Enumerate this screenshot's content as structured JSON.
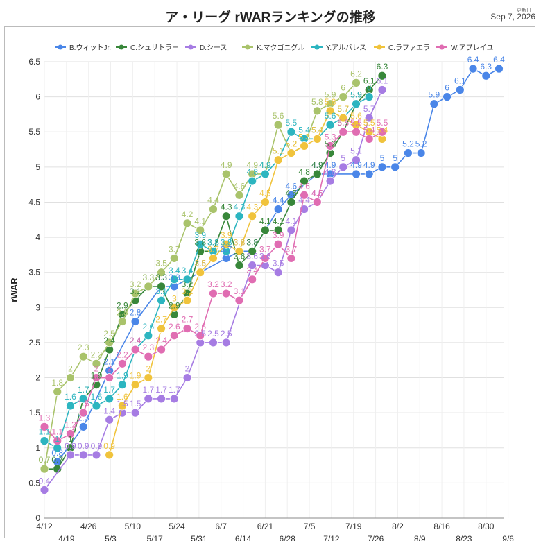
{
  "header": {
    "title": "ア・リーグ rWARランキングの推移",
    "updated_label": "更新日",
    "updated_date": "Sep 7, 2026"
  },
  "chart_data": {
    "type": "line",
    "title": "ア・リーグ rWARランキングの推移",
    "xlabel": "",
    "ylabel": "rWAR",
    "ylim": [
      0,
      6.5
    ],
    "yticks": [
      0,
      0.5,
      1,
      1.5,
      2,
      2.5,
      3,
      3.5,
      4,
      4.5,
      5,
      5.5,
      6,
      6.5
    ],
    "grid": true,
    "legend_position": "top",
    "x": [
      "4/12",
      "4/19",
      "4/26",
      "5/3",
      "5/10",
      "5/17",
      "5/24",
      "5/31",
      "6/7",
      "6/14",
      "6/21",
      "6/28",
      "7/5",
      "7/12",
      "7/19",
      "7/26",
      "8/2",
      "8/9",
      "8/16",
      "8/23",
      "8/30",
      "9/6"
    ],
    "series": [
      {
        "name": "B.ウィットJr.",
        "color": "#4a86e8",
        "points": [
          [
            0.5,
            0.8
          ],
          [
            1.5,
            1.3
          ],
          [
            2.5,
            2.1
          ],
          [
            3.5,
            2.8
          ],
          [
            4.5,
            3.3
          ],
          [
            5,
            3.3
          ],
          [
            6,
            3.5
          ],
          [
            7,
            3.7
          ],
          [
            7.5,
            3.8
          ],
          [
            8,
            3.8
          ],
          [
            9,
            4.4
          ],
          [
            9.5,
            4.6
          ],
          [
            10.5,
            4.9
          ],
          [
            11,
            4.9
          ],
          [
            12,
            4.9
          ],
          [
            12.5,
            4.9
          ],
          [
            13,
            5
          ],
          [
            13.5,
            5
          ],
          [
            14,
            5.2
          ],
          [
            14.5,
            5.2
          ],
          [
            15,
            5.9
          ],
          [
            15.5,
            6
          ],
          [
            16,
            6.1
          ],
          [
            16.5,
            6.4
          ],
          [
            17,
            6.3
          ],
          [
            17.5,
            6.4
          ]
        ]
      },
      {
        "name": "C.シュリトラー",
        "color": "#38873a",
        "points": [
          [
            0,
            0.7
          ],
          [
            0.5,
            0.7
          ],
          [
            1,
            1
          ],
          [
            1.5,
            1.7
          ],
          [
            2,
            1.9
          ],
          [
            2.5,
            2.4
          ],
          [
            3,
            2.9
          ],
          [
            3.5,
            3.1
          ],
          [
            4,
            3.3
          ],
          [
            4.5,
            3.3
          ],
          [
            5,
            2.9
          ],
          [
            5.5,
            3.2
          ],
          [
            6,
            3.8
          ],
          [
            6.5,
            3.8
          ],
          [
            7,
            4.3
          ],
          [
            7.5,
            3.6
          ],
          [
            8,
            3.8
          ],
          [
            8.5,
            4.1
          ],
          [
            9,
            4.1
          ],
          [
            9.5,
            4.5
          ],
          [
            10,
            4.8
          ],
          [
            10.5,
            4.9
          ],
          [
            11,
            5.2
          ],
          [
            11.5,
            5.5
          ],
          [
            12,
            5.9
          ],
          [
            12.5,
            6.1
          ],
          [
            13,
            6.3
          ]
        ]
      },
      {
        "name": "D.シース",
        "color": "#a67ce3",
        "points": [
          [
            0,
            0.4
          ],
          [
            1,
            0.9
          ],
          [
            1.5,
            0.9
          ],
          [
            2,
            0.9
          ],
          [
            2.5,
            1.4
          ],
          [
            3,
            1.5
          ],
          [
            3.5,
            1.5
          ],
          [
            4,
            1.7
          ],
          [
            4.5,
            1.7
          ],
          [
            5,
            1.7
          ],
          [
            5.5,
            2
          ],
          [
            6,
            2.5
          ],
          [
            6.5,
            2.5
          ],
          [
            7,
            2.5
          ],
          [
            8,
            3.6
          ],
          [
            8.5,
            3.6
          ],
          [
            9,
            3.5
          ],
          [
            9.5,
            4.1
          ],
          [
            10,
            4.4
          ],
          [
            10.5,
            4.5
          ],
          [
            11,
            4.8
          ],
          [
            11.5,
            5
          ],
          [
            12,
            5.1
          ],
          [
            12.5,
            5.7
          ],
          [
            13,
            6.1
          ]
        ]
      },
      {
        "name": "K.マクゴニグル",
        "color": "#a9c36b",
        "points": [
          [
            0,
            0.7
          ],
          [
            0.5,
            1.8
          ],
          [
            1,
            2
          ],
          [
            1.5,
            2.3
          ],
          [
            2,
            2.2
          ],
          [
            2.5,
            2.5
          ],
          [
            3,
            2.8
          ],
          [
            3.5,
            3.2
          ],
          [
            4,
            3.3
          ],
          [
            4.5,
            3.5
          ],
          [
            5,
            3.7
          ],
          [
            5.5,
            4.2
          ],
          [
            6,
            4.1
          ],
          [
            6.5,
            4.4
          ],
          [
            7,
            4.9
          ],
          [
            7.5,
            4.6
          ],
          [
            8,
            4.9
          ],
          [
            8.5,
            4.9
          ],
          [
            9,
            5.6
          ],
          [
            9.5,
            5.2
          ],
          [
            10,
            5.3
          ],
          [
            10.5,
            5.8
          ],
          [
            11,
            5.9
          ],
          [
            11.5,
            6
          ],
          [
            12,
            6.2
          ]
        ]
      },
      {
        "name": "Y.アルバレス",
        "color": "#2cb5c0",
        "points": [
          [
            0,
            1.1
          ],
          [
            0.5,
            1
          ],
          [
            1,
            1.6
          ],
          [
            1.5,
            1.7
          ],
          [
            2,
            1.6
          ],
          [
            2.5,
            1.7
          ],
          [
            3,
            1.9
          ],
          [
            3.5,
            2.4
          ],
          [
            4,
            2.6
          ],
          [
            4.5,
            3.1
          ],
          [
            5,
            3.4
          ],
          [
            5.5,
            3.4
          ],
          [
            6,
            3.9
          ],
          [
            6.5,
            3.8
          ],
          [
            7,
            3.8
          ],
          [
            7.5,
            4.3
          ],
          [
            8,
            4.8
          ],
          [
            8.5,
            4.9
          ],
          [
            9,
            5.1
          ],
          [
            9.5,
            5.5
          ],
          [
            10,
            5.4
          ],
          [
            10.5,
            5.4
          ],
          [
            11,
            5.6
          ],
          [
            11.5,
            5.7
          ],
          [
            12,
            5.9
          ],
          [
            12.5,
            6
          ]
        ]
      },
      {
        "name": "C.ラファエラ",
        "color": "#f0c33c",
        "points": [
          [
            2.5,
            0.9
          ],
          [
            3,
            1.6
          ],
          [
            3.5,
            1.9
          ],
          [
            4,
            2
          ],
          [
            4.5,
            2.7
          ],
          [
            5,
            3
          ],
          [
            5.5,
            3.1
          ],
          [
            6,
            3.5
          ],
          [
            6.5,
            3.7
          ],
          [
            7,
            3.9
          ],
          [
            7.5,
            3.8
          ],
          [
            8,
            4.3
          ],
          [
            8.5,
            4.5
          ],
          [
            9,
            5.1
          ],
          [
            9.5,
            5.2
          ],
          [
            10,
            5.3
          ],
          [
            10.5,
            5.4
          ],
          [
            11,
            5.8
          ],
          [
            11.5,
            5.7
          ],
          [
            12,
            5.6
          ],
          [
            12.5,
            5.5
          ],
          [
            13,
            5.4
          ]
        ]
      },
      {
        "name": "W.アブレイユ",
        "color": "#e06db2",
        "points": [
          [
            0,
            1.3
          ],
          [
            0.5,
            1.1
          ],
          [
            1,
            1.2
          ],
          [
            1.5,
            1.5
          ],
          [
            2,
            2
          ],
          [
            2.5,
            2
          ],
          [
            3,
            2.2
          ],
          [
            3.5,
            2.4
          ],
          [
            4,
            2.3
          ],
          [
            4.5,
            2.4
          ],
          [
            5,
            2.6
          ],
          [
            5.5,
            2.7
          ],
          [
            6,
            2.6
          ],
          [
            6.5,
            3.2
          ],
          [
            7,
            3.2
          ],
          [
            7.5,
            3.1
          ],
          [
            8,
            3.4
          ],
          [
            8.5,
            3.7
          ],
          [
            9,
            3.9
          ],
          [
            9.5,
            3.7
          ],
          [
            10,
            4.6
          ],
          [
            10.5,
            4.5
          ],
          [
            11,
            5.3
          ],
          [
            11.5,
            5.5
          ],
          [
            12,
            5.5
          ],
          [
            12.5,
            5.4
          ],
          [
            13,
            5.5
          ]
        ]
      }
    ]
  }
}
